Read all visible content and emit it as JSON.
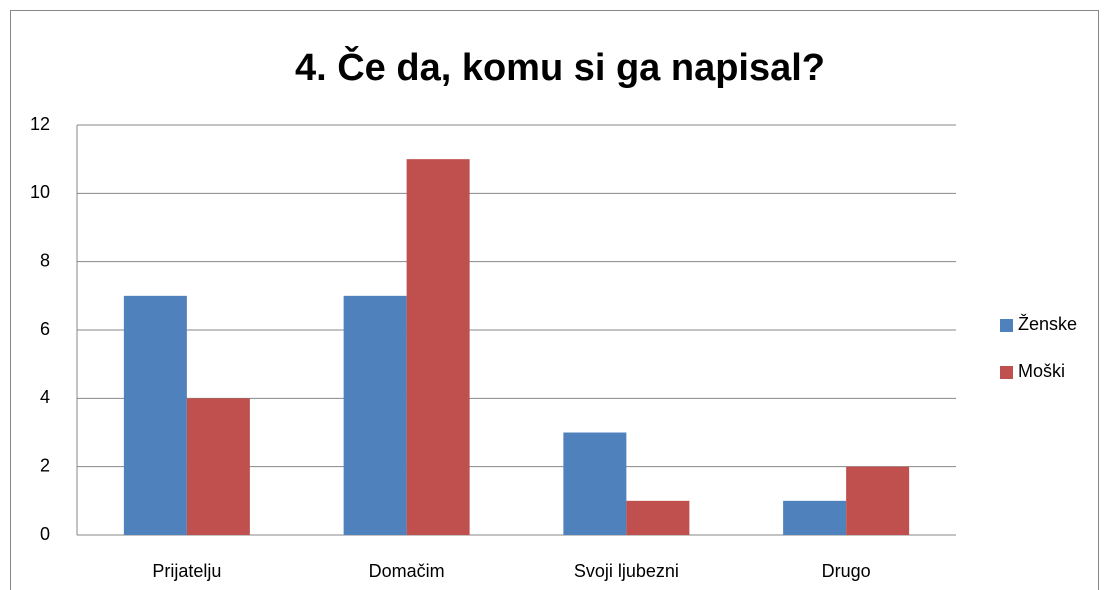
{
  "chart_data": {
    "type": "bar",
    "title": "4. Če da, komu si ga napisal?",
    "categories": [
      "Prijatelju",
      "Domačim",
      "Svoji ljubezni",
      "Drugo"
    ],
    "series": [
      {
        "name": "Ženske",
        "color": "#4f81bd",
        "values": [
          7,
          7,
          3,
          1
        ]
      },
      {
        "name": "Moški",
        "color": "#c0504d",
        "values": [
          4,
          11,
          1,
          2
        ]
      }
    ],
    "ylim": [
      0,
      12
    ],
    "yticks": [
      0,
      2,
      4,
      6,
      8,
      10,
      12
    ],
    "grid": true,
    "legend": "right"
  }
}
